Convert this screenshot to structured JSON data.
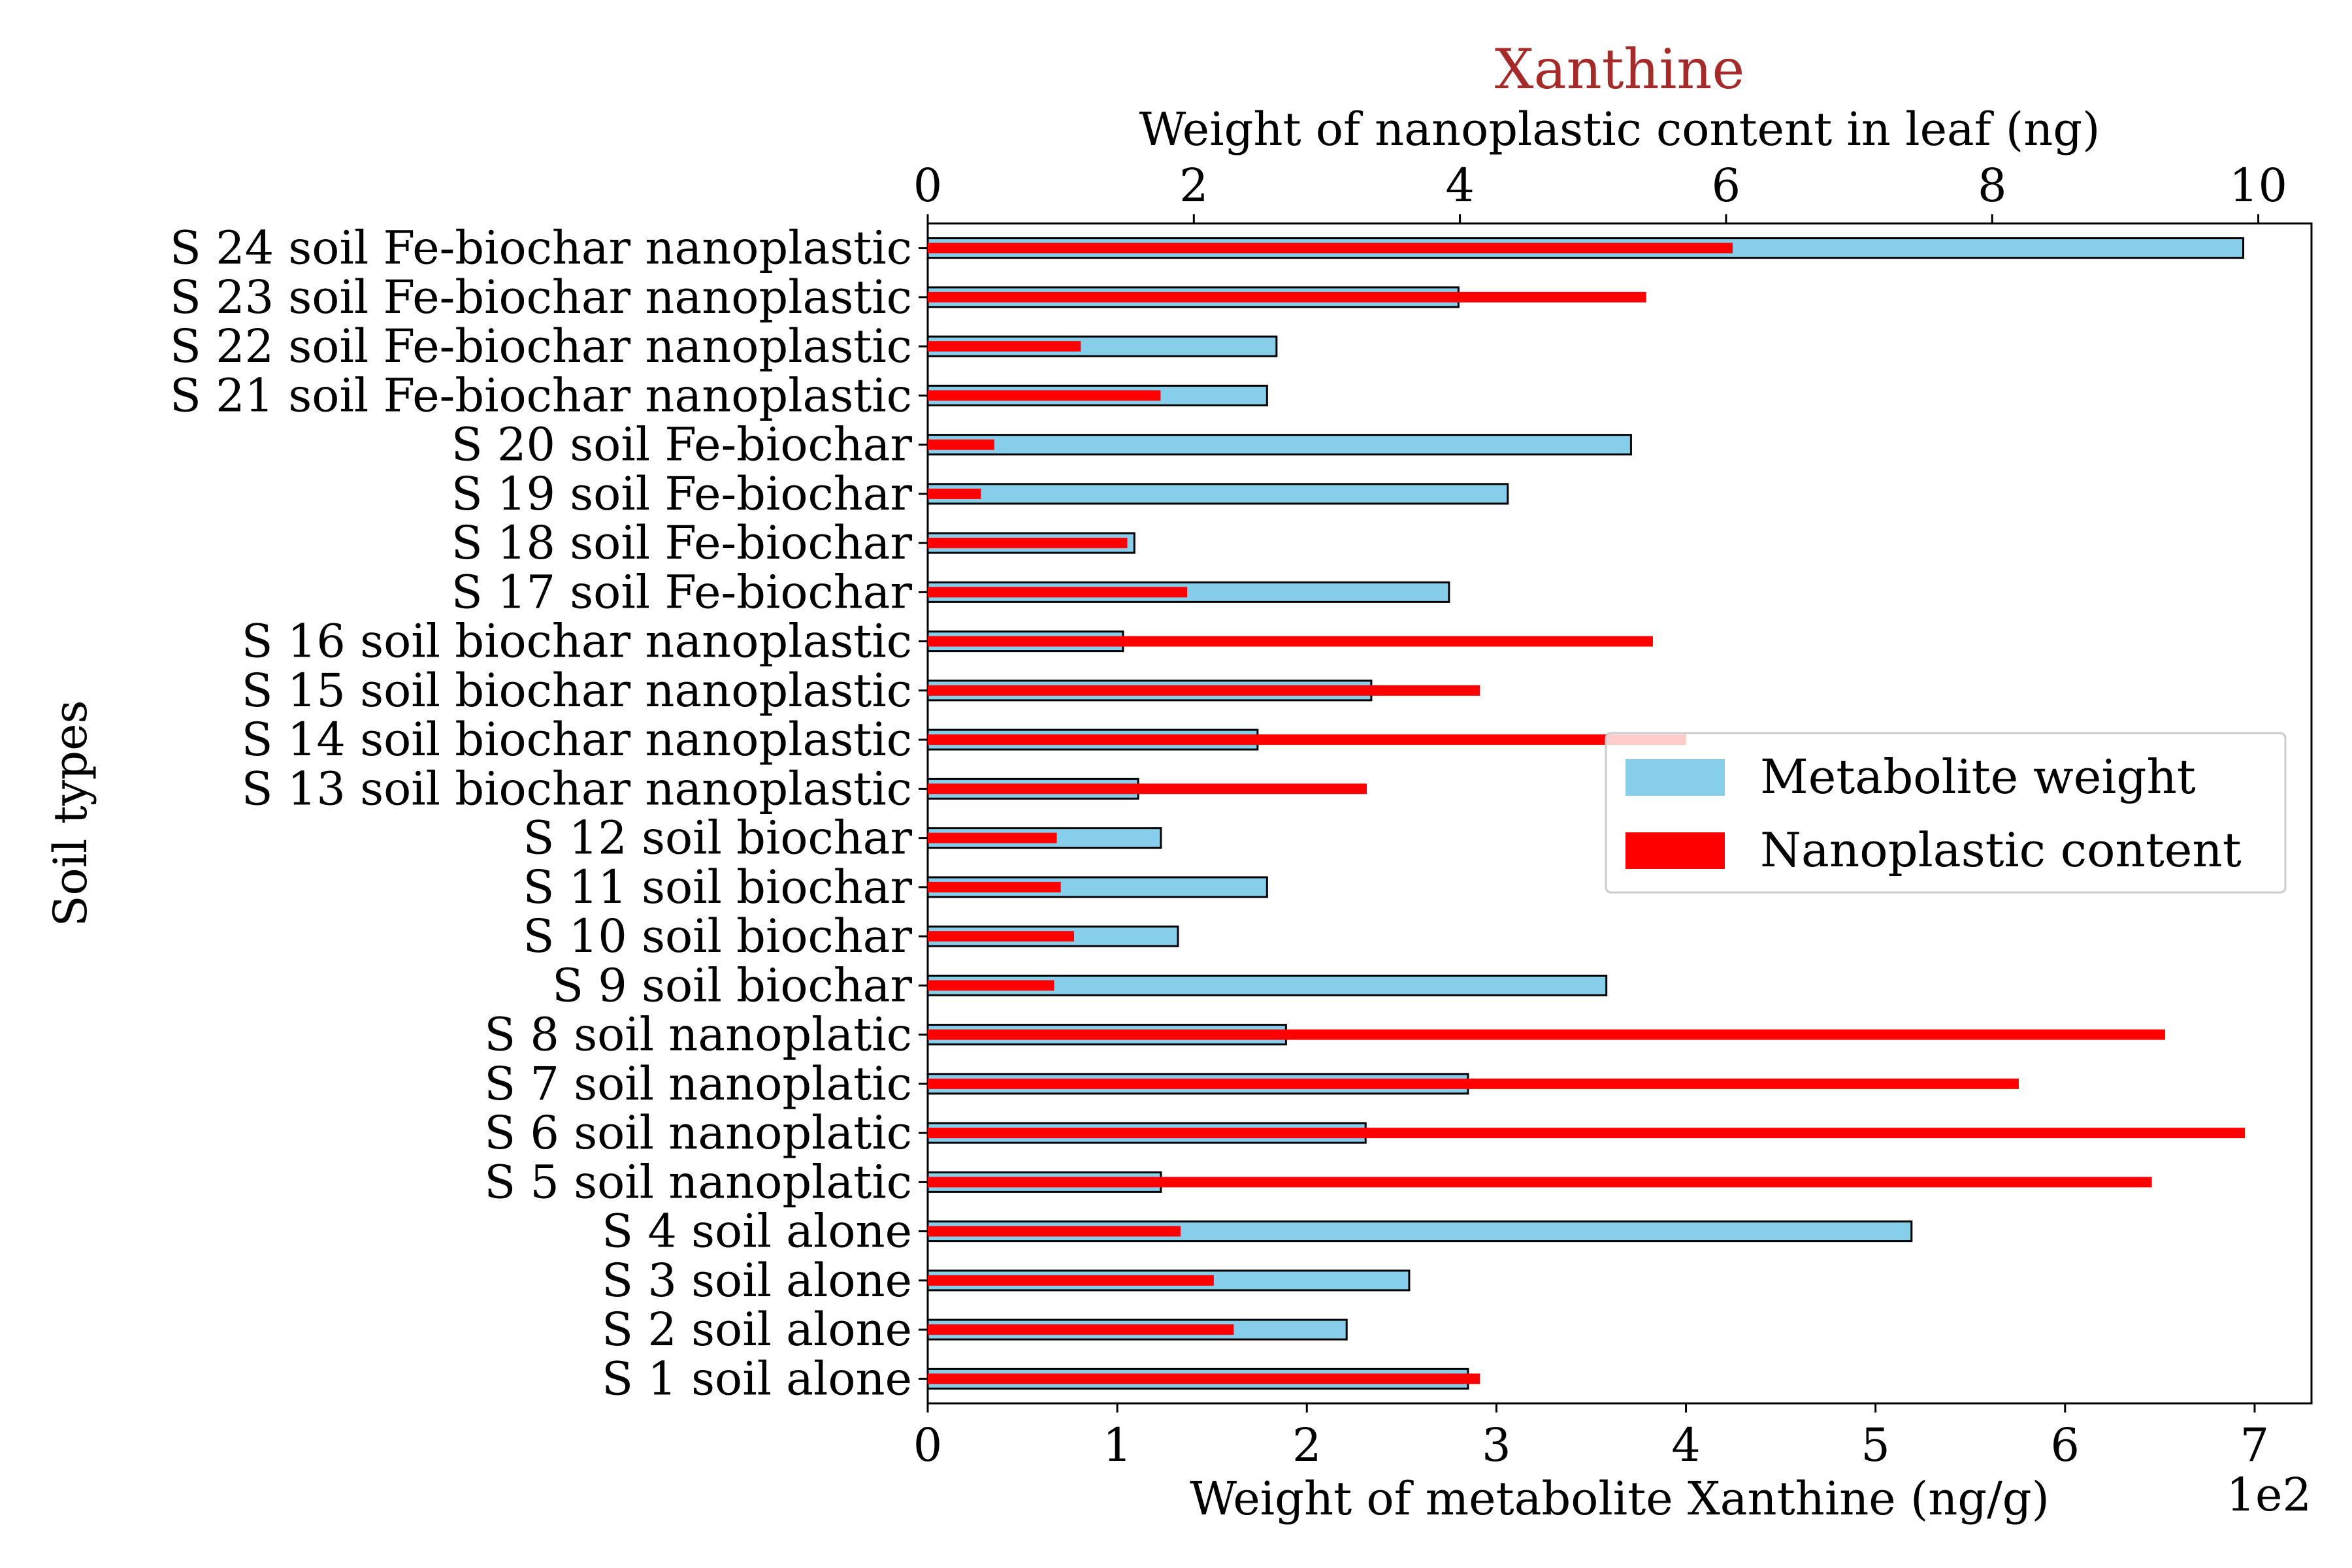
{
  "chart_data": {
    "type": "bar",
    "orientation": "horizontal",
    "title": "Xanthine",
    "title_color": "#a52a2a",
    "ylabel": "Soil types",
    "xlabel_bottom": "Weight of metabolite Xanthine (ng/g)",
    "xlabel_top": "Weight of nanoplastic content in leaf (ng)",
    "bottom_axis_multiplier": "1e2",
    "xlim_bottom": [
      0,
      7.3
    ],
    "xlim_top": [
      0,
      10.4
    ],
    "xticks_bottom": [
      "0",
      "1",
      "2",
      "3",
      "4",
      "5",
      "6",
      "7"
    ],
    "xticks_top": [
      "0",
      "2",
      "4",
      "6",
      "8",
      "10"
    ],
    "grid": false,
    "legend_position": "right",
    "categories": [
      "S 1 soil alone",
      "S 2 soil alone",
      "S 3 soil alone",
      "S 4 soil alone",
      "S 5 soil nanoplatic",
      "S 6 soil nanoplatic",
      "S 7 soil nanoplatic",
      "S 8 soil nanoplatic",
      "S 9 soil biochar",
      "S 10 soil biochar",
      "S 11 soil biochar",
      "S 12 soil biochar",
      "S 13 soil biochar nanoplastic",
      "S 14 soil biochar nanoplastic",
      "S 15 soil biochar nanoplastic",
      "S 16 soil biochar nanoplastic",
      "S 17 soil Fe-biochar",
      "S 18 soil Fe-biochar",
      "S 19 soil Fe-biochar",
      "S 20 soil Fe-biochar",
      "S 21 soil Fe-biochar nanoplastic",
      "S 22 soil Fe-biochar nanoplastic",
      "S 23 soil Fe-biochar nanoplastic",
      "S 24 soil Fe-biochar nanoplastic"
    ],
    "series": [
      {
        "name": "Metabolite weight",
        "axis": "bottom",
        "color": "#87ceeb",
        "edge_color": "#000000",
        "values": [
          2.85,
          2.21,
          2.54,
          5.19,
          1.23,
          2.31,
          2.85,
          1.89,
          3.58,
          1.32,
          1.79,
          1.23,
          1.11,
          1.74,
          2.34,
          1.03,
          2.75,
          1.09,
          3.06,
          3.71,
          1.79,
          1.84,
          2.8,
          6.94
        ]
      },
      {
        "name": "Nanoplastic content",
        "axis": "top",
        "color": "#ff0000",
        "values": [
          4.15,
          2.3,
          2.15,
          1.9,
          9.2,
          9.9,
          8.2,
          9.3,
          0.95,
          1.1,
          1.0,
          0.97,
          3.3,
          5.7,
          4.15,
          5.45,
          1.95,
          1.5,
          0.4,
          0.5,
          1.75,
          1.15,
          5.4,
          6.05
        ]
      }
    ]
  }
}
